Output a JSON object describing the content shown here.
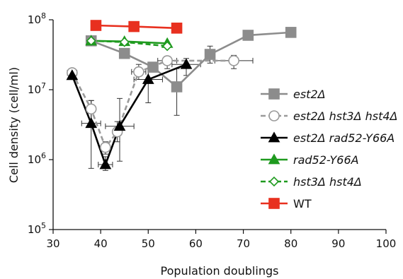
{
  "chart_data": {
    "type": "line",
    "xlabel": "Population doublings",
    "ylabel": "Cell density (cell/ml)",
    "xlim": [
      30,
      100
    ],
    "xticks": [
      30,
      40,
      50,
      60,
      70,
      80,
      90,
      100
    ],
    "ylim_log10": [
      5,
      8
    ],
    "ylog": true,
    "yticks": [
      {
        "base": "10",
        "exp": "5",
        "value": 100000
      },
      {
        "base": "10",
        "exp": "6",
        "value": 1000000
      },
      {
        "base": "10",
        "exp": "7",
        "value": 10000000
      },
      {
        "base": "10",
        "exp": "8",
        "value": 100000000
      }
    ],
    "grid": false,
    "legend_position": "right",
    "series": [
      {
        "name": "est2Δ",
        "italic": true,
        "color": "#8c8c8c",
        "marker": "square",
        "marker_fill": "#8c8c8c",
        "dashed": false,
        "points": [
          {
            "x": 38,
            "y": 50000000
          },
          {
            "x": 45,
            "y": 33000000
          },
          {
            "x": 51,
            "y": 21000000
          },
          {
            "x": 56,
            "y": 11000000,
            "yerr": [
              4300000,
              20000000
            ]
          },
          {
            "x": 63,
            "y": 32000000,
            "yerr": [
              24000000,
              42000000
            ]
          },
          {
            "x": 71,
            "y": 60000000
          },
          {
            "x": 80,
            "y": 66000000
          }
        ]
      },
      {
        "name": "est2Δ hst3Δ hst4Δ",
        "italic": true,
        "color": "#9a9a9a",
        "marker": "circle",
        "marker_fill": "#ffffff",
        "dashed": true,
        "points": [
          {
            "x": 34,
            "y": 17500000,
            "xerr": 1
          },
          {
            "x": 38,
            "y": 5300000,
            "yerr": [
              3300000,
              7000000
            ]
          },
          {
            "x": 41,
            "y": 1500000,
            "yerr": [
              1200000,
              1800000
            ]
          },
          {
            "x": 43.5,
            "y": 2500000,
            "yerr": [
              1800000,
              3500000
            ]
          },
          {
            "x": 48,
            "y": 18000000,
            "xerr": 1.5,
            "yerr": [
              14000000,
              23000000
            ]
          },
          {
            "x": 54,
            "y": 26000000,
            "xerr": 2,
            "yerr": [
              20000000,
              30000000
            ]
          },
          {
            "x": 68,
            "y": 26000000,
            "xerr": 4,
            "yerr": [
              20000000,
              31000000
            ]
          }
        ]
      },
      {
        "name": "est2Δ rad52-Y66A",
        "italic": true,
        "color": "#000000",
        "marker": "triangle",
        "marker_fill": "#000000",
        "dashed": false,
        "points": [
          {
            "x": 34,
            "y": 16000000
          },
          {
            "x": 38,
            "y": 3300000,
            "xerr": 2,
            "yerr": [
              750000,
              7000000
            ]
          },
          {
            "x": 41,
            "y": 850000,
            "xerr": 1.5,
            "yerr": [
              700000,
              1100000
            ]
          },
          {
            "x": 44,
            "y": 3000000,
            "xerr": 3,
            "yerr": [
              950000,
              7500000
            ]
          },
          {
            "x": 50,
            "y": 14000000,
            "xerr": 3,
            "yerr": [
              6500000,
              20000000
            ]
          },
          {
            "x": 58,
            "y": 23000000,
            "xerr": 3,
            "yerr": [
              16000000,
              28000000
            ]
          }
        ]
      },
      {
        "name": "rad52-Y66A",
        "italic": true,
        "color": "#1f9a1f",
        "marker": "triangle",
        "marker_fill": "#1f9a1f",
        "dashed": false,
        "points": [
          {
            "x": 38,
            "y": 50000000
          },
          {
            "x": 45,
            "y": 49000000
          },
          {
            "x": 54,
            "y": 46000000
          }
        ]
      },
      {
        "name": "hst3Δ hst4Δ",
        "italic": true,
        "color": "#1f9a1f",
        "marker": "diamond",
        "marker_fill": "#ffffff",
        "dashed": true,
        "points": [
          {
            "x": 38,
            "y": 50000000
          },
          {
            "x": 45,
            "y": 48000000
          },
          {
            "x": 54,
            "y": 42000000
          }
        ]
      },
      {
        "name": "WT",
        "italic": false,
        "color": "#e8301f",
        "marker": "square",
        "marker_fill": "#e8301f",
        "dashed": false,
        "points": [
          {
            "x": 39,
            "y": 83000000
          },
          {
            "x": 47,
            "y": 80000000
          },
          {
            "x": 56,
            "y": 76000000
          }
        ]
      }
    ]
  }
}
